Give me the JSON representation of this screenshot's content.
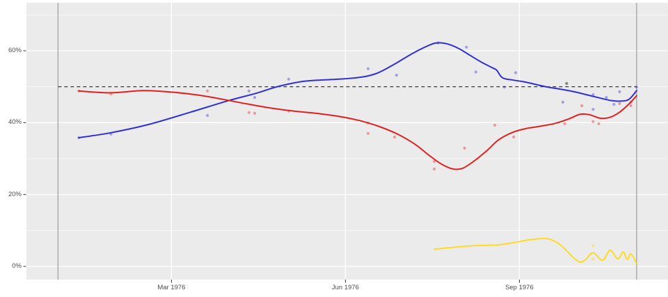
{
  "chart_data": {
    "type": "line",
    "description": "Smoothed polling trend lines with raw poll scatter points over 1976; x axis in days since 1976-01-01",
    "axes": {
      "x": {
        "tick_labels": [
          "Mar 1976",
          "Jun 1976",
          "Sep 1976"
        ],
        "tick_days": [
          60,
          152,
          244
        ],
        "domain_days": [
          -16.7,
          322.6
        ],
        "grid": "major-vertical-white"
      },
      "y": {
        "tick_labels": [
          "0%",
          "20%",
          "40%",
          "60%"
        ],
        "tick_values": [
          0,
          20,
          40,
          60
        ],
        "minor_values": [
          10,
          30,
          50,
          70
        ],
        "domain_pct": [
          -3.68,
          73.35
        ],
        "grid": "major-and-minor-horizontal-white"
      }
    },
    "reference_lines": {
      "dashed_hline_pct": 50,
      "dashed_span_days": [
        0,
        306
      ],
      "vline_days": [
        0,
        306
      ]
    },
    "colors": {
      "panel_bg": "#ebebeb",
      "grid": "#ffffff",
      "blue": "#2f2fd3",
      "red": "#e02020",
      "yellow": "#ffd916",
      "gray_point": "#606060",
      "dashed": "#222222",
      "vline": "#ababab",
      "axis_text": "#4d4d4d",
      "tick_mark": "#333333"
    },
    "series": [
      {
        "name": "blue-trend",
        "color_key": "blue",
        "points": [
          [
            11,
            35.8
          ],
          [
            28,
            37.2
          ],
          [
            48,
            39.5
          ],
          [
            70,
            42.9
          ],
          [
            90,
            46.1
          ],
          [
            105,
            48.2
          ],
          [
            116,
            50.0
          ],
          [
            130,
            51.5
          ],
          [
            145,
            52.0
          ],
          [
            158,
            52.5
          ],
          [
            168,
            53.6
          ],
          [
            178,
            56.3
          ],
          [
            188,
            59.4
          ],
          [
            197,
            61.7
          ],
          [
            201,
            62.2
          ],
          [
            206,
            61.9
          ],
          [
            212,
            60.6
          ],
          [
            218,
            58.7
          ],
          [
            224,
            56.8
          ],
          [
            230,
            55.2
          ],
          [
            232,
            54.6
          ],
          [
            235,
            52.5
          ],
          [
            240,
            51.9
          ],
          [
            246,
            51.4
          ],
          [
            252,
            50.7
          ],
          [
            259,
            49.9
          ],
          [
            266,
            49.3
          ],
          [
            273,
            48.6
          ],
          [
            280,
            47.7
          ],
          [
            287,
            46.8
          ],
          [
            293,
            46.1
          ],
          [
            298,
            46.0
          ],
          [
            302,
            46.5
          ],
          [
            306,
            48.9
          ]
        ]
      },
      {
        "name": "red-trend",
        "color_key": "red",
        "points": [
          [
            11,
            48.8
          ],
          [
            28,
            48.3
          ],
          [
            45,
            48.9
          ],
          [
            60,
            48.5
          ],
          [
            75,
            47.6
          ],
          [
            88,
            46.4
          ],
          [
            100,
            45.2
          ],
          [
            112,
            44.1
          ],
          [
            125,
            43.2
          ],
          [
            138,
            42.5
          ],
          [
            150,
            41.6
          ],
          [
            160,
            40.5
          ],
          [
            170,
            38.9
          ],
          [
            180,
            36.7
          ],
          [
            189,
            33.9
          ],
          [
            196,
            31.0
          ],
          [
            203,
            28.4
          ],
          [
            209,
            27.1
          ],
          [
            214,
            27.3
          ],
          [
            220,
            29.3
          ],
          [
            227,
            32.3
          ],
          [
            233,
            35.2
          ],
          [
            240,
            37.2
          ],
          [
            247,
            38.3
          ],
          [
            255,
            39.0
          ],
          [
            263,
            39.8
          ],
          [
            270,
            41.0
          ],
          [
            276,
            42.3
          ],
          [
            281,
            42.2
          ],
          [
            287,
            41.2
          ],
          [
            292,
            41.5
          ],
          [
            297,
            42.9
          ],
          [
            302,
            45.2
          ],
          [
            306,
            47.5
          ]
        ]
      },
      {
        "name": "yellow-trend",
        "color_key": "yellow",
        "points": [
          [
            199,
            4.8
          ],
          [
            209,
            5.3
          ],
          [
            221,
            5.8
          ],
          [
            233,
            6.0
          ],
          [
            243,
            6.8
          ],
          [
            249,
            7.4
          ],
          [
            255,
            7.7
          ],
          [
            259,
            7.7
          ],
          [
            264,
            6.6
          ],
          [
            268,
            4.9
          ],
          [
            272,
            2.7
          ],
          [
            276,
            1.2
          ],
          [
            279,
            1.9
          ],
          [
            283,
            3.8
          ],
          [
            288,
            1.7
          ],
          [
            292,
            4.5
          ],
          [
            296,
            2.1
          ],
          [
            299,
            4.0
          ],
          [
            301,
            1.9
          ],
          [
            303,
            3.5
          ],
          [
            306,
            0.8
          ]
        ]
      }
    ],
    "scatter": [
      {
        "name": "blue-polls",
        "color_key": "blue",
        "opacity": 0.4,
        "points": [
          [
            11,
            35.8
          ],
          [
            28,
            36.8
          ],
          [
            79,
            42.0
          ],
          [
            101,
            48.8
          ],
          [
            104,
            47.0
          ],
          [
            122,
            52.1
          ],
          [
            164,
            55.0
          ],
          [
            179,
            53.2
          ],
          [
            201,
            62.2
          ],
          [
            216,
            61.0
          ],
          [
            221,
            54.1
          ],
          [
            236,
            49.9
          ],
          [
            242,
            53.9
          ],
          [
            267,
            45.7
          ],
          [
            283,
            47.8
          ],
          [
            283,
            43.7
          ],
          [
            290,
            47.0
          ],
          [
            294,
            45.1
          ],
          [
            297,
            48.6
          ],
          [
            306,
            49.9
          ]
        ]
      },
      {
        "name": "red-polls",
        "color_key": "red",
        "opacity": 0.4,
        "points": [
          [
            11,
            48.8
          ],
          [
            28,
            48.0
          ],
          [
            79,
            48.8
          ],
          [
            101,
            42.8
          ],
          [
            104,
            42.6
          ],
          [
            122,
            43.2
          ],
          [
            164,
            39.9
          ],
          [
            164,
            37.0
          ],
          [
            178,
            36.0
          ],
          [
            199,
            29.2
          ],
          [
            199,
            27.1
          ],
          [
            215,
            32.9
          ],
          [
            231,
            39.3
          ],
          [
            241,
            36.0
          ],
          [
            268,
            39.7
          ],
          [
            277,
            44.7
          ],
          [
            283,
            40.3
          ],
          [
            286,
            39.7
          ],
          [
            297,
            45.3
          ],
          [
            303,
            45.7
          ],
          [
            303,
            44.7
          ]
        ]
      },
      {
        "name": "yellow-polls",
        "color_key": "yellow",
        "opacity": 0.45,
        "points": [
          [
            283,
            5.8
          ],
          [
            283,
            2.0
          ]
        ]
      },
      {
        "name": "gray-polls",
        "color_key": "gray_point",
        "opacity": 0.75,
        "points": [
          [
            269,
            50.9
          ]
        ]
      }
    ]
  }
}
